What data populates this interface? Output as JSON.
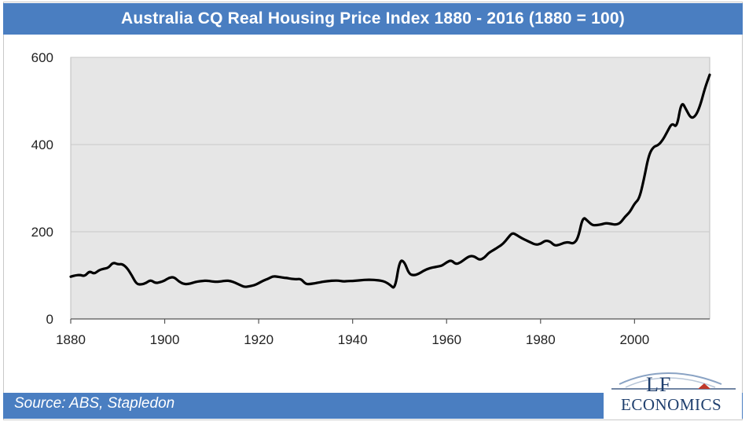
{
  "chart_data": {
    "type": "line",
    "title": "Australia CQ Real Housing Price Index 1880  - 2016  (1880  = 100)",
    "xlabel": "",
    "ylabel": "",
    "xlim": [
      1880,
      2016
    ],
    "ylim": [
      0,
      600
    ],
    "x_ticks": [
      1880,
      1900,
      1920,
      1940,
      1960,
      1980,
      2000
    ],
    "y_ticks": [
      0,
      200,
      400,
      600
    ],
    "grid": true,
    "series": [
      {
        "name": "Real Housing Price Index",
        "color": "#000000",
        "points": [
          [
            1880,
            97
          ],
          [
            1881,
            100
          ],
          [
            1882,
            101
          ],
          [
            1883,
            98
          ],
          [
            1884,
            110
          ],
          [
            1885,
            103
          ],
          [
            1886,
            112
          ],
          [
            1887,
            115
          ],
          [
            1888,
            117
          ],
          [
            1889,
            130
          ],
          [
            1890,
            125
          ],
          [
            1891,
            126
          ],
          [
            1892,
            117
          ],
          [
            1893,
            100
          ],
          [
            1894,
            80
          ],
          [
            1895,
            79
          ],
          [
            1896,
            82
          ],
          [
            1897,
            90
          ],
          [
            1898,
            82
          ],
          [
            1899,
            84
          ],
          [
            1900,
            88
          ],
          [
            1901,
            95
          ],
          [
            1902,
            96
          ],
          [
            1903,
            86
          ],
          [
            1904,
            80
          ],
          [
            1905,
            80
          ],
          [
            1906,
            83
          ],
          [
            1907,
            86
          ],
          [
            1908,
            87
          ],
          [
            1909,
            88
          ],
          [
            1910,
            86
          ],
          [
            1911,
            85
          ],
          [
            1912,
            86
          ],
          [
            1913,
            88
          ],
          [
            1914,
            87
          ],
          [
            1915,
            83
          ],
          [
            1916,
            78
          ],
          [
            1917,
            73
          ],
          [
            1918,
            75
          ],
          [
            1919,
            77
          ],
          [
            1920,
            82
          ],
          [
            1921,
            88
          ],
          [
            1922,
            92
          ],
          [
            1923,
            98
          ],
          [
            1924,
            97
          ],
          [
            1925,
            95
          ],
          [
            1926,
            94
          ],
          [
            1927,
            92
          ],
          [
            1928,
            91
          ],
          [
            1929,
            92
          ],
          [
            1930,
            80
          ],
          [
            1931,
            80
          ],
          [
            1932,
            82
          ],
          [
            1933,
            84
          ],
          [
            1934,
            86
          ],
          [
            1935,
            87
          ],
          [
            1936,
            88
          ],
          [
            1937,
            88
          ],
          [
            1938,
            86
          ],
          [
            1939,
            87
          ],
          [
            1940,
            87
          ],
          [
            1941,
            88
          ],
          [
            1942,
            89
          ],
          [
            1943,
            90
          ],
          [
            1944,
            90
          ],
          [
            1945,
            89
          ],
          [
            1946,
            88
          ],
          [
            1947,
            85
          ],
          [
            1948,
            78
          ],
          [
            1949,
            68
          ],
          [
            1950,
            135
          ],
          [
            1951,
            132
          ],
          [
            1952,
            103
          ],
          [
            1953,
            100
          ],
          [
            1954,
            103
          ],
          [
            1955,
            110
          ],
          [
            1956,
            115
          ],
          [
            1957,
            118
          ],
          [
            1958,
            120
          ],
          [
            1959,
            122
          ],
          [
            1960,
            130
          ],
          [
            1961,
            135
          ],
          [
            1962,
            125
          ],
          [
            1963,
            130
          ],
          [
            1964,
            138
          ],
          [
            1965,
            145
          ],
          [
            1966,
            143
          ],
          [
            1967,
            135
          ],
          [
            1968,
            140
          ],
          [
            1969,
            152
          ],
          [
            1970,
            158
          ],
          [
            1971,
            165
          ],
          [
            1972,
            172
          ],
          [
            1973,
            185
          ],
          [
            1974,
            198
          ],
          [
            1975,
            192
          ],
          [
            1976,
            185
          ],
          [
            1977,
            180
          ],
          [
            1978,
            175
          ],
          [
            1979,
            170
          ],
          [
            1980,
            172
          ],
          [
            1981,
            180
          ],
          [
            1982,
            178
          ],
          [
            1983,
            168
          ],
          [
            1984,
            170
          ],
          [
            1985,
            175
          ],
          [
            1986,
            176
          ],
          [
            1987,
            172
          ],
          [
            1988,
            185
          ],
          [
            1989,
            235
          ],
          [
            1990,
            225
          ],
          [
            1991,
            215
          ],
          [
            1992,
            215
          ],
          [
            1993,
            217
          ],
          [
            1994,
            220
          ],
          [
            1995,
            218
          ],
          [
            1996,
            216
          ],
          [
            1997,
            220
          ],
          [
            1998,
            235
          ],
          [
            1999,
            245
          ],
          [
            2000,
            265
          ],
          [
            2001,
            275
          ],
          [
            2002,
            320
          ],
          [
            2003,
            375
          ],
          [
            2004,
            395
          ],
          [
            2005,
            398
          ],
          [
            2006,
            410
          ],
          [
            2007,
            430
          ],
          [
            2008,
            450
          ],
          [
            2009,
            438
          ],
          [
            2010,
            500
          ],
          [
            2011,
            480
          ],
          [
            2012,
            460
          ],
          [
            2013,
            465
          ],
          [
            2014,
            490
          ],
          [
            2015,
            530
          ],
          [
            2016,
            560
          ]
        ]
      }
    ]
  },
  "footer": {
    "source": "Source:  ABS, Stapledon",
    "logo_line1": "LF",
    "logo_line2": "ECONOMICS"
  },
  "colors": {
    "header_bg": "#4a7ec1",
    "plot_bg": "#e6e6e6",
    "line": "#000000",
    "logo_text": "#1f3f6e"
  }
}
